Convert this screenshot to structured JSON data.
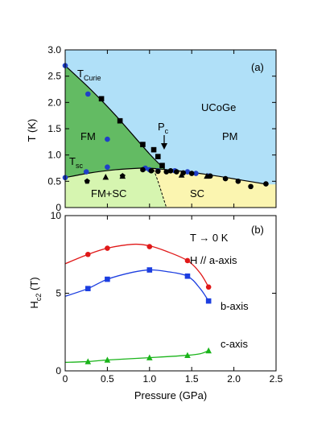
{
  "chart_data": [
    {
      "type": "phase-diagram",
      "panel_label": "(a)",
      "ylabel": "T (K)",
      "xlim": [
        0,
        2.5
      ],
      "ylim": [
        0,
        3.0
      ],
      "yticks": [
        0,
        0.5,
        1.0,
        1.5,
        2.0,
        2.5,
        3.0
      ],
      "ytick_labels": [
        "0",
        "0.5",
        "1.0",
        "1.5",
        "2.0",
        "2.5",
        "3.0"
      ],
      "region_labels": {
        "compound": "UCoGe",
        "fm": "FM",
        "pm": "PM",
        "fm_sc": "FM+SC",
        "sc": "SC",
        "t_curie_main": "T",
        "t_curie_sub": "Curie",
        "t_sc_main": "T",
        "t_sc_sub": "sc",
        "pc_main": "P",
        "pc_sub": "c"
      },
      "colors": {
        "fm": "#63bb63",
        "pm": "#b0e0f8",
        "fm_sc": "#d6f5b0",
        "sc": "#fbf5b0"
      },
      "curie_line": {
        "x": [
          0,
          0.3,
          0.6,
          1.0,
          1.2
        ],
        "y": [
          2.7,
          2.25,
          1.75,
          1.02,
          0.7
        ]
      },
      "sc_line": {
        "x": [
          0,
          0.3,
          0.6,
          0.9,
          1.0,
          1.2,
          1.5,
          1.8,
          2.1,
          2.4
        ],
        "y": [
          0.57,
          0.66,
          0.72,
          0.75,
          0.75,
          0.72,
          0.67,
          0.6,
          0.52,
          0.44
        ]
      },
      "fm_boundary_dashed": {
        "x": [
          1.05,
          1.1,
          1.15,
          1.18,
          1.2
        ],
        "y": [
          0.72,
          0.5,
          0.25,
          0.1,
          0
        ]
      },
      "series": [
        {
          "marker": "circle",
          "color": "#1f3fc8",
          "x": [
            0,
            0.27,
            0.5,
            0.95,
            0,
            0.25,
            0.5,
            1.0,
            1.1,
            1.3,
            1.45,
            1.55,
            1.7
          ],
          "y": [
            2.7,
            2.16,
            1.3,
            0.75,
            0.57,
            0.68,
            0.77,
            0.72,
            0.7,
            0.7,
            0.68,
            0.65,
            0.6
          ]
        },
        {
          "marker": "square",
          "color": "#000000",
          "x": [
            0.43,
            0.65,
            0.92,
            1.05,
            1.1,
            1.15
          ],
          "y": [
            2.07,
            1.65,
            1.2,
            1.1,
            0.97,
            0.8
          ]
        },
        {
          "marker": "circle",
          "color": "#000000",
          "x": [
            0.92,
            1.02,
            1.1,
            1.2,
            1.25,
            1.32,
            1.4,
            1.5,
            1.72,
            1.9,
            2.05,
            2.2,
            2.38
          ],
          "y": [
            0.72,
            0.7,
            0.69,
            0.68,
            0.7,
            0.68,
            0.66,
            0.65,
            0.6,
            0.55,
            0.5,
            0.4,
            0.45
          ]
        },
        {
          "marker": "triangle",
          "color": "#000000",
          "x": [
            0.48,
            0.68,
            1.38,
            1.68
          ],
          "y": [
            0.58,
            0.6,
            0.62,
            0.6
          ]
        },
        {
          "marker": "pentagon",
          "color": "#000000",
          "x": [
            0.26,
            0.68
          ],
          "y": [
            0.5,
            0.6
          ]
        }
      ]
    },
    {
      "type": "line",
      "panel_label": "(b)",
      "ylabel_main": "H",
      "ylabel_sub": "c2",
      "ylabel_unit": " (T)",
      "xlabel": "Pressure (GPa)",
      "xlim": [
        0,
        2.5
      ],
      "ylim": [
        0,
        10
      ],
      "xticks": [
        0,
        0.5,
        1.0,
        1.5,
        2.0,
        2.5
      ],
      "xtick_labels": [
        "0",
        "0.5",
        "1.0",
        "1.5",
        "2.0",
        "2.5"
      ],
      "yticks": [
        0,
        5,
        10
      ],
      "ytick_labels": [
        "0",
        "5",
        "10"
      ],
      "annotation": "T → 0 K",
      "field_label": "H // a-axis",
      "series": [
        {
          "name": "a-axis",
          "label": "H // a-axis",
          "color": "#e01818",
          "marker": "circle",
          "x": [
            0.27,
            0.5,
            1.0,
            1.45,
            1.7
          ],
          "y": [
            7.5,
            7.9,
            8.0,
            7.1,
            5.4
          ],
          "curve_x": [
            0,
            0.27,
            0.5,
            0.8,
            1.0,
            1.2,
            1.45,
            1.6,
            1.7
          ],
          "curve_y": [
            6.9,
            7.5,
            7.9,
            8.15,
            8.05,
            7.7,
            7.1,
            6.3,
            5.4
          ]
        },
        {
          "name": "b-axis",
          "label": "b-axis",
          "color": "#1c3ee0",
          "marker": "square",
          "x": [
            0.27,
            0.5,
            1.0,
            1.45,
            1.7
          ],
          "y": [
            5.3,
            5.9,
            6.5,
            6.1,
            4.5
          ],
          "curve_x": [
            0,
            0.27,
            0.5,
            0.8,
            1.0,
            1.2,
            1.45,
            1.6,
            1.7
          ],
          "curve_y": [
            4.8,
            5.3,
            5.9,
            6.35,
            6.5,
            6.4,
            6.1,
            5.3,
            4.5
          ]
        },
        {
          "name": "c-axis",
          "label": "c-axis",
          "color": "#1ab41a",
          "marker": "triangle",
          "x": [
            0.27,
            0.5,
            1.0,
            1.45,
            1.7
          ],
          "y": [
            0.6,
            0.7,
            0.85,
            1.0,
            1.3
          ],
          "curve_x": [
            0,
            0.27,
            0.5,
            1.0,
            1.45,
            1.6,
            1.7
          ],
          "curve_y": [
            0.55,
            0.6,
            0.7,
            0.85,
            1.0,
            1.1,
            1.3
          ]
        }
      ]
    }
  ]
}
